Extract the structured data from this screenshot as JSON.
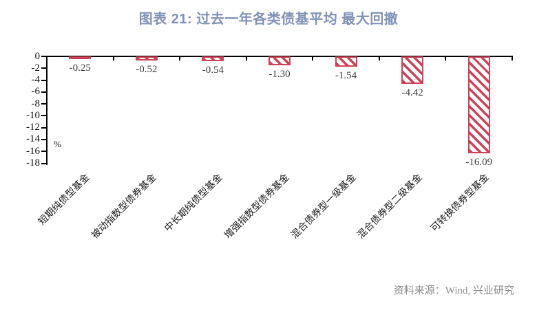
{
  "chart_data": {
    "type": "bar",
    "title": "图表 21: 过去一年各类债基平均 最大回撤",
    "unit_label": "%",
    "categories": [
      "短期纯债型基金",
      "被动指数型债券基金",
      "中长期纯债型基金",
      "增强指数型债券基金",
      "混合债券型一级基金",
      "混合债券型二级基金",
      "可转换债券型基金"
    ],
    "values": [
      -0.25,
      -0.52,
      -0.54,
      -1.3,
      -1.54,
      -4.42,
      -16.09
    ],
    "value_labels": [
      "-0.25",
      "-0.52",
      "-0.54",
      "-1.30",
      "-1.54",
      "-4.42",
      "-16.09"
    ],
    "ylabel": "%",
    "xlabel": "",
    "ylim": [
      -18,
      0
    ],
    "yticks": [
      0,
      -2,
      -4,
      -6,
      -8,
      -10,
      -12,
      -14,
      -16,
      -18
    ],
    "grid": false,
    "legend": "none",
    "bar_style": "diagonal-hatch",
    "source": "资料来源：Wind, 兴业研究"
  },
  "colors": {
    "title": "#8093b6",
    "bar": "#cc4256",
    "axis": "#000000",
    "value_label": "#3d3d3d",
    "source_text": "#8a8a8a"
  }
}
